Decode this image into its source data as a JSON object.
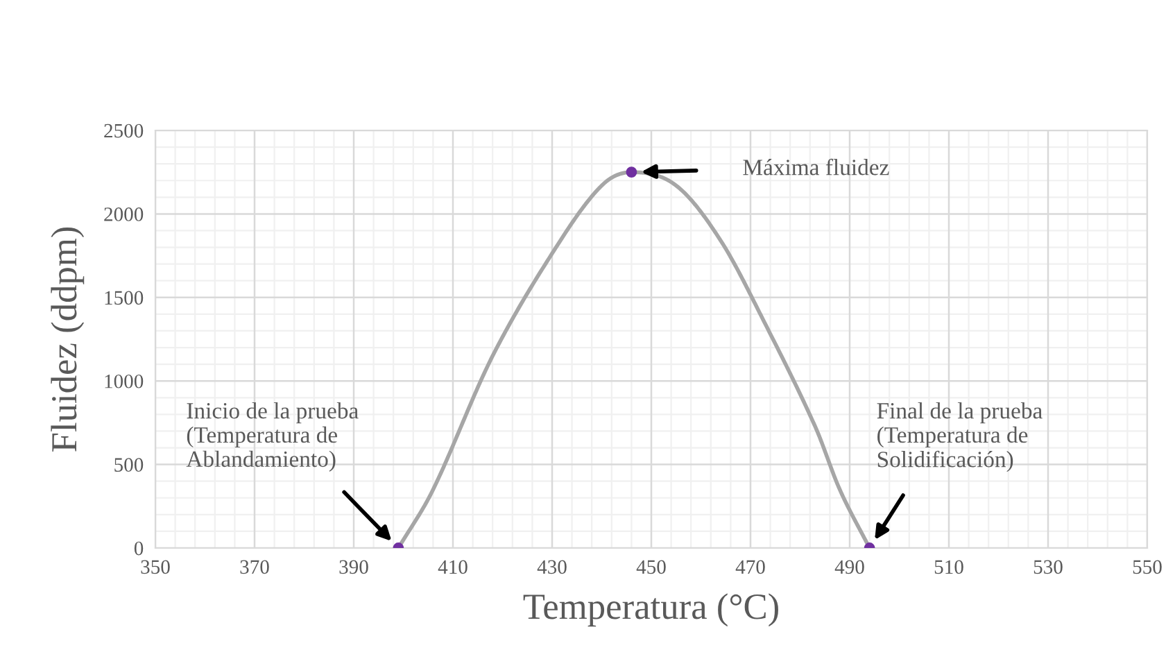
{
  "chart_data": {
    "type": "line",
    "xlabel": "Temperatura (°C)",
    "ylabel": "Fluidez (ddpm)",
    "series": [
      {
        "color": "#a6a6a6",
        "marker": "none",
        "x": [
          399,
          406,
          418,
          431,
          440,
          446,
          455,
          464,
          473,
          483,
          488,
          494
        ],
        "values": [
          0,
          350,
          1150,
          1810,
          2170,
          2250,
          2170,
          1840,
          1340,
          730,
          350,
          0
        ]
      },
      {
        "type": "scatter",
        "color": "#7030a0",
        "marker": "circle",
        "x": [
          399,
          446,
          494
        ],
        "values": [
          0,
          2250,
          0
        ]
      }
    ],
    "annotations": [
      "Inicio de la prueba\n(Temperatura de\nAblandamiento)",
      "Máxima fluidez",
      "Final de la prueba\n(Temperatura de\nSolidificación)"
    ],
    "xlim": [
      350,
      550
    ],
    "xticks": [
      350,
      370,
      390,
      410,
      430,
      450,
      470,
      490,
      510,
      530,
      550
    ],
    "ylim": [
      0,
      2500
    ],
    "yticks": [
      0,
      500,
      1000,
      1500,
      2000,
      2500
    ],
    "grid": true
  }
}
